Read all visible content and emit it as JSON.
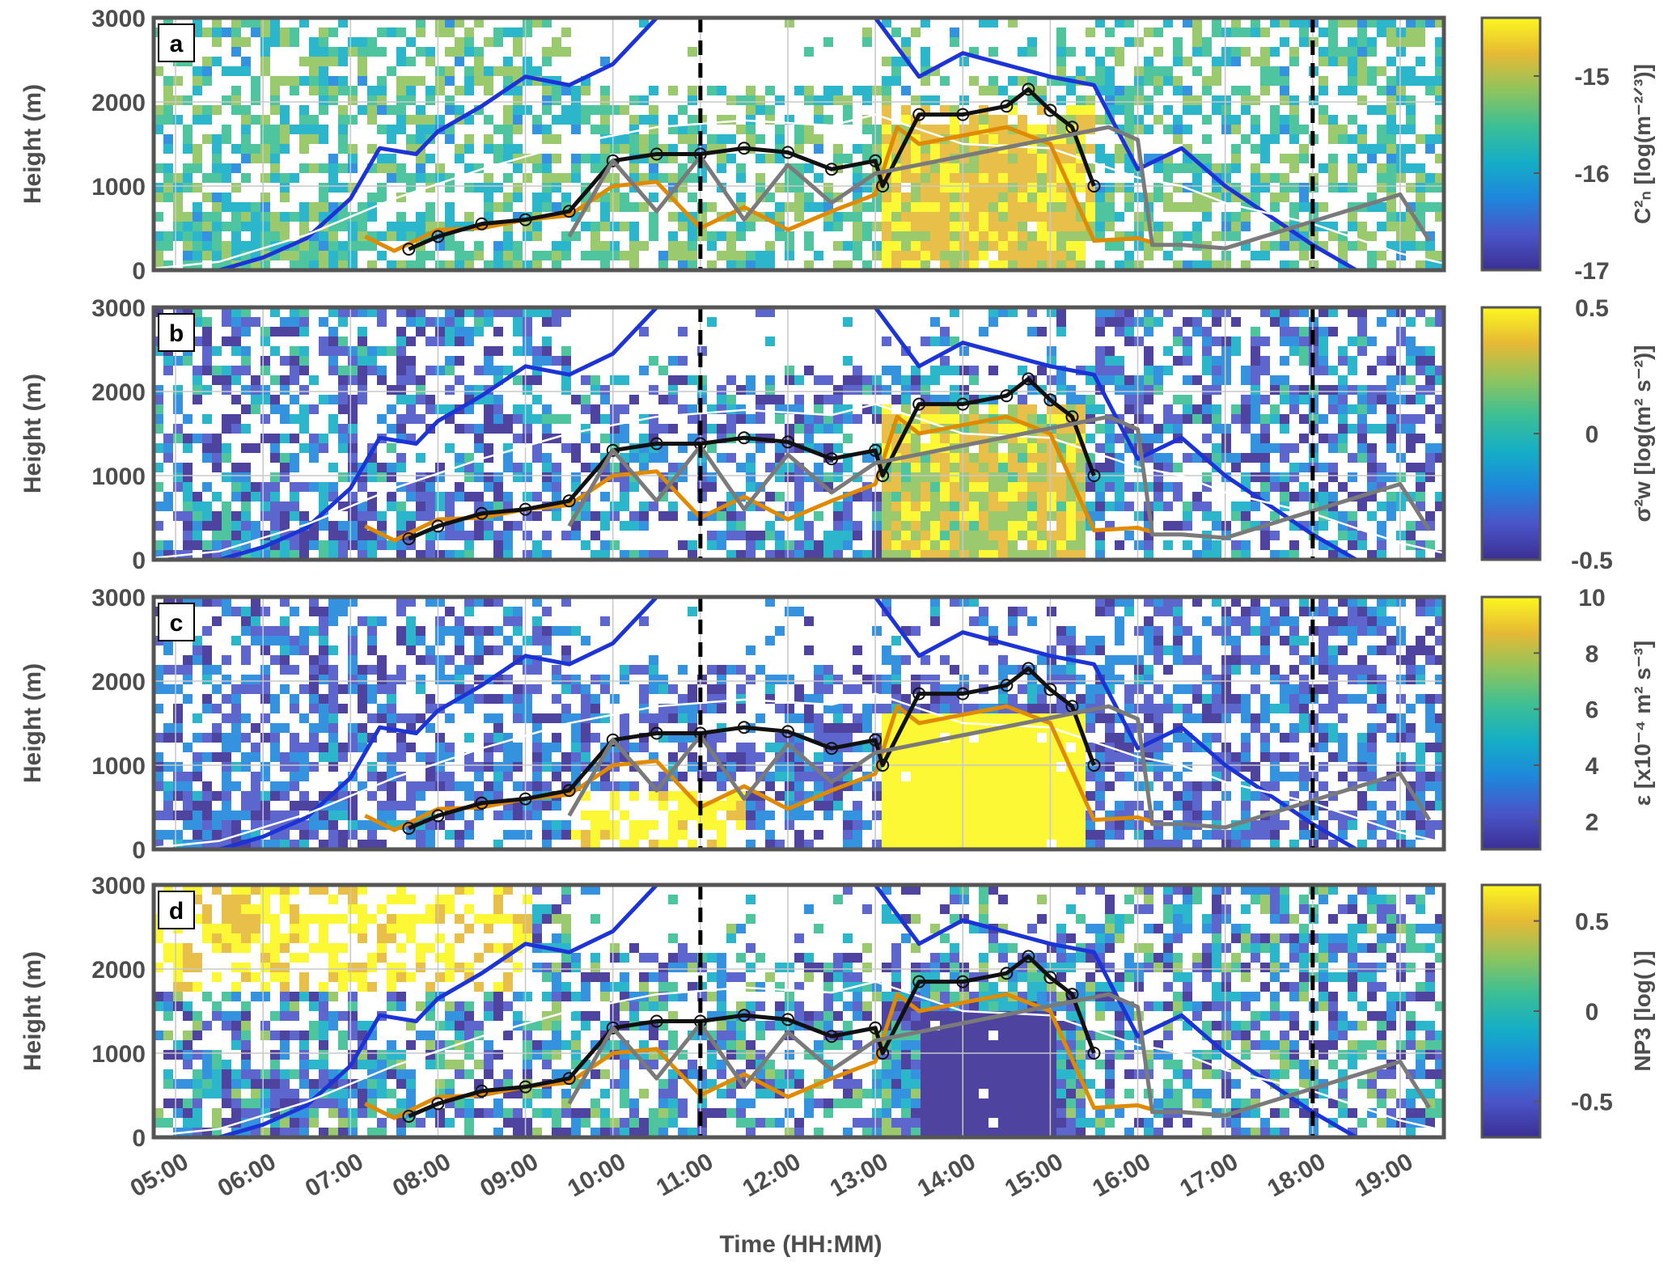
{
  "figure": {
    "xlabel": "Time (HH:MM)",
    "ylabel": "Height (m)",
    "x_ticks": [
      "05:00",
      "06:00",
      "07:00",
      "08:00",
      "09:00",
      "10:00",
      "11:00",
      "12:00",
      "13:00",
      "14:00",
      "15:00",
      "16:00",
      "17:00",
      "18:00",
      "19:00"
    ],
    "y_ticks": [
      "0",
      "1000",
      "2000",
      "3000"
    ],
    "line_colors": {
      "boundary_layer": "#1c33d6",
      "model_line": "#ffffff",
      "orange_line": "#e08a00",
      "black_line": "#111111",
      "gray_line": "#7a7a7a"
    },
    "colormap": [
      "#3b2f94",
      "#4a55c8",
      "#1f86dc",
      "#14aec6",
      "#3cbf95",
      "#8fc45d",
      "#e6b935",
      "#fcf720"
    ]
  },
  "panels": [
    {
      "letter": "a",
      "cbar_label": "C²ₙ [log(m⁻²ᐟ³)]",
      "cbar_ticks": [
        "-15",
        "-16",
        "-17"
      ]
    },
    {
      "letter": "b",
      "cbar_label": "σ²w [log(m² s⁻²)]",
      "cbar_ticks": [
        "0.5",
        "0",
        "-0.5"
      ]
    },
    {
      "letter": "c",
      "cbar_label": "ε [x10⁻⁴ m² s⁻³]",
      "cbar_ticks": [
        "10",
        "8",
        "6",
        "4",
        "2"
      ]
    },
    {
      "letter": "d",
      "cbar_label": "NP3 [log( )]",
      "cbar_ticks": [
        "0.5",
        "0",
        "-0.5"
      ]
    }
  ],
  "chart_data": [
    {
      "type": "heatmap",
      "panel": "a",
      "title": "",
      "xlabel": "",
      "ylabel": "Height (m)",
      "xlim": [
        "04:45",
        "19:30"
      ],
      "ylim": [
        0,
        3000
      ],
      "colorbar": {
        "label": "C²ₙ [log(m⁻²ᐟ³)]",
        "range": [
          -17,
          -14.4
        ],
        "ticks": [
          -15,
          -16,
          -17
        ]
      },
      "grid": true,
      "vertical_dashed_lines": [
        "11:00",
        "18:00"
      ],
      "series": [
        {
          "name": "",
          "color": "#1c33d6",
          "x": [
            "05:30",
            "06:00",
            "06:30",
            "07:00",
            "07:20",
            "07:45",
            "08:00",
            "08:30",
            "09:00",
            "09:30",
            "10:00",
            "10:30",
            "13:00",
            "13:30",
            "14:00",
            "15:00",
            "15:30",
            "16:00",
            "16:30",
            "17:00",
            "18:00",
            "18:30"
          ],
          "y": [
            0,
            150,
            380,
            850,
            1450,
            1380,
            1650,
            1950,
            2300,
            2200,
            2450,
            3000,
            3000,
            2300,
            2580,
            2300,
            2200,
            1200,
            1450,
            1000,
            300,
            0
          ]
        },
        {
          "name": "",
          "color": "#ffffff",
          "x": [
            "04:45",
            "05:30",
            "06:30",
            "07:30",
            "08:30",
            "09:30",
            "10:30",
            "11:30",
            "12:30",
            "13:00",
            "14:00",
            "15:00",
            "16:00",
            "16:30",
            "17:00",
            "18:00",
            "19:00",
            "19:30"
          ],
          "y": [
            20,
            100,
            420,
            850,
            1200,
            1500,
            1700,
            1780,
            1720,
            1850,
            1500,
            1450,
            1100,
            1000,
            800,
            550,
            200,
            80
          ]
        },
        {
          "name": "",
          "color": "#e08a00",
          "x": [
            "07:10",
            "07:30",
            "08:00",
            "08:30",
            "09:00",
            "09:30",
            "10:00",
            "10:30",
            "11:00",
            "11:30",
            "12:00",
            "12:30",
            "13:00",
            "13:15",
            "13:30",
            "14:00",
            "14:30",
            "15:00",
            "15:30",
            "16:00",
            "16:10"
          ],
          "y": [
            400,
            230,
            480,
            500,
            600,
            650,
            1000,
            1050,
            500,
            750,
            480,
            700,
            900,
            1700,
            1500,
            1600,
            1700,
            1500,
            350,
            380,
            330
          ]
        },
        {
          "name": "",
          "color": "#111111",
          "x": [
            "07:40",
            "08:00",
            "08:30",
            "09:00",
            "09:30",
            "10:00",
            "10:30",
            "11:00",
            "11:30",
            "12:00",
            "12:30",
            "13:00",
            "13:05",
            "13:30",
            "14:00",
            "14:30",
            "14:45",
            "15:00",
            "15:15",
            "15:30"
          ],
          "y": [
            250,
            400,
            550,
            600,
            700,
            1300,
            1380,
            1380,
            1450,
            1400,
            1200,
            1300,
            1000,
            1850,
            1850,
            1950,
            2150,
            1900,
            1700,
            1000
          ]
        },
        {
          "name": "",
          "color": "#7a7a7a",
          "x": [
            "09:30",
            "10:00",
            "10:30",
            "11:00",
            "11:30",
            "12:00",
            "12:30",
            "13:00",
            "15:40",
            "16:00",
            "16:10",
            "16:30",
            "17:00",
            "19:00",
            "19:20"
          ],
          "y": [
            400,
            1300,
            700,
            1350,
            600,
            1250,
            800,
            1150,
            1700,
            1550,
            300,
            300,
            260,
            900,
            350
          ]
        }
      ]
    },
    {
      "type": "heatmap",
      "panel": "b",
      "title": "",
      "xlabel": "",
      "ylabel": "Height (m)",
      "xlim": [
        "04:45",
        "19:30"
      ],
      "ylim": [
        0,
        3000
      ],
      "colorbar": {
        "label": "σ²w [log(m² s⁻²)]",
        "range": [
          -0.5,
          0.5
        ],
        "ticks": [
          0.5,
          0,
          -0.5
        ]
      },
      "grid": true,
      "vertical_dashed_lines": [
        "11:00",
        "18:00"
      ]
    },
    {
      "type": "heatmap",
      "panel": "c",
      "title": "",
      "xlabel": "",
      "ylabel": "Height (m)",
      "xlim": [
        "04:45",
        "19:30"
      ],
      "ylim": [
        0,
        3000
      ],
      "colorbar": {
        "label": "ε [x10⁻⁴ m² s⁻³]",
        "range": [
          1,
          10
        ],
        "ticks": [
          10,
          8,
          6,
          4,
          2
        ]
      },
      "grid": true,
      "vertical_dashed_lines": [
        "11:00",
        "18:00"
      ]
    },
    {
      "type": "heatmap",
      "panel": "d",
      "title": "",
      "xlabel": "Time (HH:MM)",
      "ylabel": "Height (m)",
      "xlim": [
        "04:45",
        "19:30"
      ],
      "ylim": [
        0,
        3000
      ],
      "colorbar": {
        "label": "NP3 [log( )]",
        "range": [
          -0.7,
          0.7
        ],
        "ticks": [
          0.5,
          0,
          -0.5
        ]
      },
      "grid": true,
      "vertical_dashed_lines": [
        "11:00",
        "18:00"
      ]
    }
  ]
}
